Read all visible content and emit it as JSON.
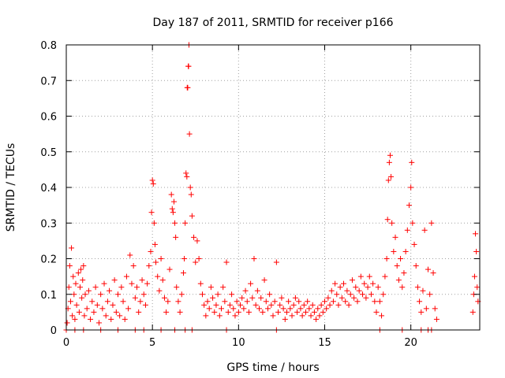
{
  "chart_data": {
    "type": "scatter",
    "title": "Day 187 of 2011, SRMTID for receiver p166",
    "xlabel": "GPS time / hours",
    "ylabel": "SRMTID / TECUs",
    "xlim": [
      0,
      24
    ],
    "ylim": [
      0,
      0.8
    ],
    "x_ticks": [
      "0",
      "5",
      "10",
      "15",
      "20"
    ],
    "x_tick_values": [
      0,
      5,
      10,
      15,
      20
    ],
    "y_ticks": [
      "0",
      "0.1",
      "0.2",
      "0.3",
      "0.4",
      "0.5",
      "0.6",
      "0.7",
      "0.8"
    ],
    "y_tick_values": [
      0,
      0.1,
      0.2,
      0.3,
      0.4,
      0.5,
      0.6,
      0.7,
      0.8
    ],
    "grid": true,
    "marker": "plus",
    "color": "#ff0000",
    "series": [
      {
        "name": "SRMTID",
        "points": [
          [
            0.05,
            0.02
          ],
          [
            0.1,
            0.06
          ],
          [
            0.15,
            0.12
          ],
          [
            0.2,
            0.18
          ],
          [
            0.25,
            0.08
          ],
          [
            0.3,
            0.23
          ],
          [
            0.35,
            0.04
          ],
          [
            0.4,
            0.15
          ],
          [
            0.45,
            0.1
          ],
          [
            0.5,
            0.03
          ],
          [
            0.55,
            0.13
          ],
          [
            0.6,
            0.07
          ],
          [
            0.7,
            0.16
          ],
          [
            0.75,
            0.05
          ],
          [
            0.8,
            0.12
          ],
          [
            0.85,
            0.17
          ],
          [
            0.9,
            0.09
          ],
          [
            0.95,
            0.14
          ],
          [
            1.0,
            0.18
          ],
          [
            1.05,
            0.04
          ],
          [
            1.1,
            0.1
          ],
          [
            1.2,
            0.06
          ],
          [
            1.3,
            0.11
          ],
          [
            1.4,
            0.03
          ],
          [
            1.5,
            0.08
          ],
          [
            1.6,
            0.05
          ],
          [
            1.7,
            0.12
          ],
          [
            1.8,
            0.07
          ],
          [
            1.9,
            0.02
          ],
          [
            2.0,
            0.1
          ],
          [
            2.1,
            0.06
          ],
          [
            2.2,
            0.13
          ],
          [
            2.3,
            0.04
          ],
          [
            2.4,
            0.08
          ],
          [
            2.5,
            0.11
          ],
          [
            2.6,
            0.03
          ],
          [
            2.7,
            0.07
          ],
          [
            2.8,
            0.14
          ],
          [
            2.9,
            0.05
          ],
          [
            3.0,
            0.1
          ],
          [
            3.1,
            0.04
          ],
          [
            3.2,
            0.12
          ],
          [
            3.3,
            0.08
          ],
          [
            3.4,
            0.03
          ],
          [
            3.5,
            0.15
          ],
          [
            3.6,
            0.06
          ],
          [
            3.7,
            0.21
          ],
          [
            3.8,
            0.13
          ],
          [
            3.9,
            0.18
          ],
          [
            4.0,
            0.09
          ],
          [
            4.1,
            0.12
          ],
          [
            4.2,
            0.05
          ],
          [
            4.3,
            0.08
          ],
          [
            4.4,
            0.14
          ],
          [
            4.5,
            0.1
          ],
          [
            4.6,
            0.07
          ],
          [
            4.7,
            0.13
          ],
          [
            4.8,
            0.18
          ],
          [
            4.9,
            0.22
          ],
          [
            4.95,
            0.33
          ],
          [
            5.0,
            0.42
          ],
          [
            5.05,
            0.41
          ],
          [
            5.1,
            0.3
          ],
          [
            5.15,
            0.24
          ],
          [
            5.2,
            0.19
          ],
          [
            5.3,
            0.15
          ],
          [
            5.4,
            0.11
          ],
          [
            5.5,
            0.2
          ],
          [
            5.6,
            0.14
          ],
          [
            5.7,
            0.09
          ],
          [
            5.8,
            0.05
          ],
          [
            5.9,
            0.08
          ],
          [
            6.0,
            0.17
          ],
          [
            6.1,
            0.38
          ],
          [
            6.15,
            0.34
          ],
          [
            6.2,
            0.33
          ],
          [
            6.25,
            0.36
          ],
          [
            6.3,
            0.3
          ],
          [
            6.35,
            0.26
          ],
          [
            6.4,
            0.12
          ],
          [
            6.5,
            0.08
          ],
          [
            6.6,
            0.05
          ],
          [
            6.7,
            0.1
          ],
          [
            6.8,
            0.16
          ],
          [
            6.85,
            0.2
          ],
          [
            6.9,
            0.3
          ],
          [
            6.95,
            0.44
          ],
          [
            7.0,
            0.43
          ],
          [
            7.02,
            0.68
          ],
          [
            7.05,
            0.68
          ],
          [
            7.08,
            0.74
          ],
          [
            7.1,
            0.74
          ],
          [
            7.12,
            0.8
          ],
          [
            7.15,
            0.55
          ],
          [
            7.2,
            0.4
          ],
          [
            7.25,
            0.38
          ],
          [
            7.3,
            0.32
          ],
          [
            7.4,
            0.26
          ],
          [
            7.5,
            0.19
          ],
          [
            7.6,
            0.25
          ],
          [
            7.7,
            0.2
          ],
          [
            7.8,
            0.13
          ],
          [
            7.9,
            0.1
          ],
          [
            8.0,
            0.07
          ],
          [
            8.1,
            0.04
          ],
          [
            8.2,
            0.08
          ],
          [
            8.3,
            0.06
          ],
          [
            8.4,
            0.12
          ],
          [
            8.5,
            0.09
          ],
          [
            8.6,
            0.05
          ],
          [
            8.7,
            0.07
          ],
          [
            8.8,
            0.1
          ],
          [
            8.9,
            0.04
          ],
          [
            9.0,
            0.06
          ],
          [
            9.1,
            0.12
          ],
          [
            9.2,
            0.08
          ],
          [
            9.3,
            0.19
          ],
          [
            9.4,
            0.05
          ],
          [
            9.5,
            0.07
          ],
          [
            9.6,
            0.1
          ],
          [
            9.7,
            0.06
          ],
          [
            9.8,
            0.04
          ],
          [
            9.9,
            0.08
          ],
          [
            10.0,
            0.05
          ],
          [
            10.1,
            0.07
          ],
          [
            10.2,
            0.09
          ],
          [
            10.3,
            0.06
          ],
          [
            10.4,
            0.11
          ],
          [
            10.5,
            0.08
          ],
          [
            10.6,
            0.05
          ],
          [
            10.7,
            0.13
          ],
          [
            10.8,
            0.09
          ],
          [
            10.9,
            0.2
          ],
          [
            11.0,
            0.07
          ],
          [
            11.1,
            0.11
          ],
          [
            11.2,
            0.06
          ],
          [
            11.3,
            0.09
          ],
          [
            11.4,
            0.05
          ],
          [
            11.5,
            0.14
          ],
          [
            11.6,
            0.08
          ],
          [
            11.7,
            0.06
          ],
          [
            11.8,
            0.1
          ],
          [
            11.9,
            0.07
          ],
          [
            12.0,
            0.04
          ],
          [
            12.1,
            0.08
          ],
          [
            12.2,
            0.19
          ],
          [
            12.3,
            0.05
          ],
          [
            12.4,
            0.07
          ],
          [
            12.5,
            0.09
          ],
          [
            12.6,
            0.06
          ],
          [
            12.7,
            0.03
          ],
          [
            12.8,
            0.05
          ],
          [
            12.9,
            0.08
          ],
          [
            13.0,
            0.06
          ],
          [
            13.1,
            0.04
          ],
          [
            13.2,
            0.07
          ],
          [
            13.3,
            0.09
          ],
          [
            13.4,
            0.05
          ],
          [
            13.5,
            0.08
          ],
          [
            13.6,
            0.06
          ],
          [
            13.7,
            0.04
          ],
          [
            13.8,
            0.07
          ],
          [
            13.9,
            0.05
          ],
          [
            14.0,
            0.08
          ],
          [
            14.1,
            0.06
          ],
          [
            14.2,
            0.04
          ],
          [
            14.3,
            0.07
          ],
          [
            14.4,
            0.05
          ],
          [
            14.5,
            0.03
          ],
          [
            14.6,
            0.06
          ],
          [
            14.7,
            0.04
          ],
          [
            14.8,
            0.07
          ],
          [
            14.9,
            0.05
          ],
          [
            15.0,
            0.08
          ],
          [
            15.1,
            0.06
          ],
          [
            15.2,
            0.09
          ],
          [
            15.3,
            0.07
          ],
          [
            15.4,
            0.11
          ],
          [
            15.5,
            0.08
          ],
          [
            15.6,
            0.13
          ],
          [
            15.7,
            0.1
          ],
          [
            15.8,
            0.07
          ],
          [
            15.9,
            0.12
          ],
          [
            16.0,
            0.09
          ],
          [
            16.1,
            0.13
          ],
          [
            16.2,
            0.08
          ],
          [
            16.3,
            0.11
          ],
          [
            16.4,
            0.07
          ],
          [
            16.5,
            0.1
          ],
          [
            16.6,
            0.14
          ],
          [
            16.7,
            0.09
          ],
          [
            16.8,
            0.12
          ],
          [
            16.9,
            0.08
          ],
          [
            17.0,
            0.11
          ],
          [
            17.1,
            0.15
          ],
          [
            17.2,
            0.1
          ],
          [
            17.3,
            0.13
          ],
          [
            17.4,
            0.09
          ],
          [
            17.5,
            0.12
          ],
          [
            17.6,
            0.15
          ],
          [
            17.7,
            0.1
          ],
          [
            17.8,
            0.13
          ],
          [
            17.9,
            0.08
          ],
          [
            18.0,
            0.05
          ],
          [
            18.1,
            0.12
          ],
          [
            18.2,
            0.08
          ],
          [
            18.3,
            0.04
          ],
          [
            18.4,
            0.1
          ],
          [
            18.5,
            0.15
          ],
          [
            18.6,
            0.2
          ],
          [
            18.65,
            0.31
          ],
          [
            18.7,
            0.42
          ],
          [
            18.75,
            0.47
          ],
          [
            18.8,
            0.49
          ],
          [
            18.85,
            0.43
          ],
          [
            18.9,
            0.3
          ],
          [
            19.0,
            0.22
          ],
          [
            19.1,
            0.26
          ],
          [
            19.2,
            0.18
          ],
          [
            19.3,
            0.14
          ],
          [
            19.4,
            0.2
          ],
          [
            19.5,
            0.12
          ],
          [
            19.6,
            0.16
          ],
          [
            19.7,
            0.22
          ],
          [
            19.8,
            0.28
          ],
          [
            19.9,
            0.35
          ],
          [
            20.0,
            0.4
          ],
          [
            20.05,
            0.47
          ],
          [
            20.1,
            0.3
          ],
          [
            20.2,
            0.24
          ],
          [
            20.3,
            0.18
          ],
          [
            20.4,
            0.12
          ],
          [
            20.5,
            0.08
          ],
          [
            20.6,
            0.05
          ],
          [
            20.7,
            0.11
          ],
          [
            20.8,
            0.28
          ],
          [
            20.9,
            0.06
          ],
          [
            21.0,
            0.17
          ],
          [
            21.1,
            0.1
          ],
          [
            21.2,
            0.3
          ],
          [
            21.3,
            0.16
          ],
          [
            21.4,
            0.06
          ],
          [
            21.5,
            0.03
          ],
          [
            23.6,
            0.05
          ],
          [
            23.65,
            0.1
          ],
          [
            23.7,
            0.15
          ],
          [
            23.75,
            0.27
          ],
          [
            23.8,
            0.22
          ],
          [
            23.85,
            0.12
          ],
          [
            23.9,
            0.08
          ],
          [
            0.0,
            0.0
          ],
          [
            0.5,
            0.0
          ],
          [
            1.0,
            0.0
          ],
          [
            2.0,
            0.0
          ],
          [
            3.0,
            0.0
          ],
          [
            4.0,
            0.0
          ],
          [
            4.5,
            0.0
          ],
          [
            5.5,
            0.0
          ],
          [
            6.3,
            0.0
          ],
          [
            6.9,
            0.0
          ],
          [
            7.3,
            0.0
          ],
          [
            9.3,
            0.0
          ],
          [
            12.2,
            0.0
          ],
          [
            18.2,
            0.0
          ],
          [
            19.5,
            0.0
          ],
          [
            20.6,
            0.0
          ],
          [
            21.0,
            0.0
          ],
          [
            21.2,
            0.0
          ]
        ]
      }
    ]
  }
}
